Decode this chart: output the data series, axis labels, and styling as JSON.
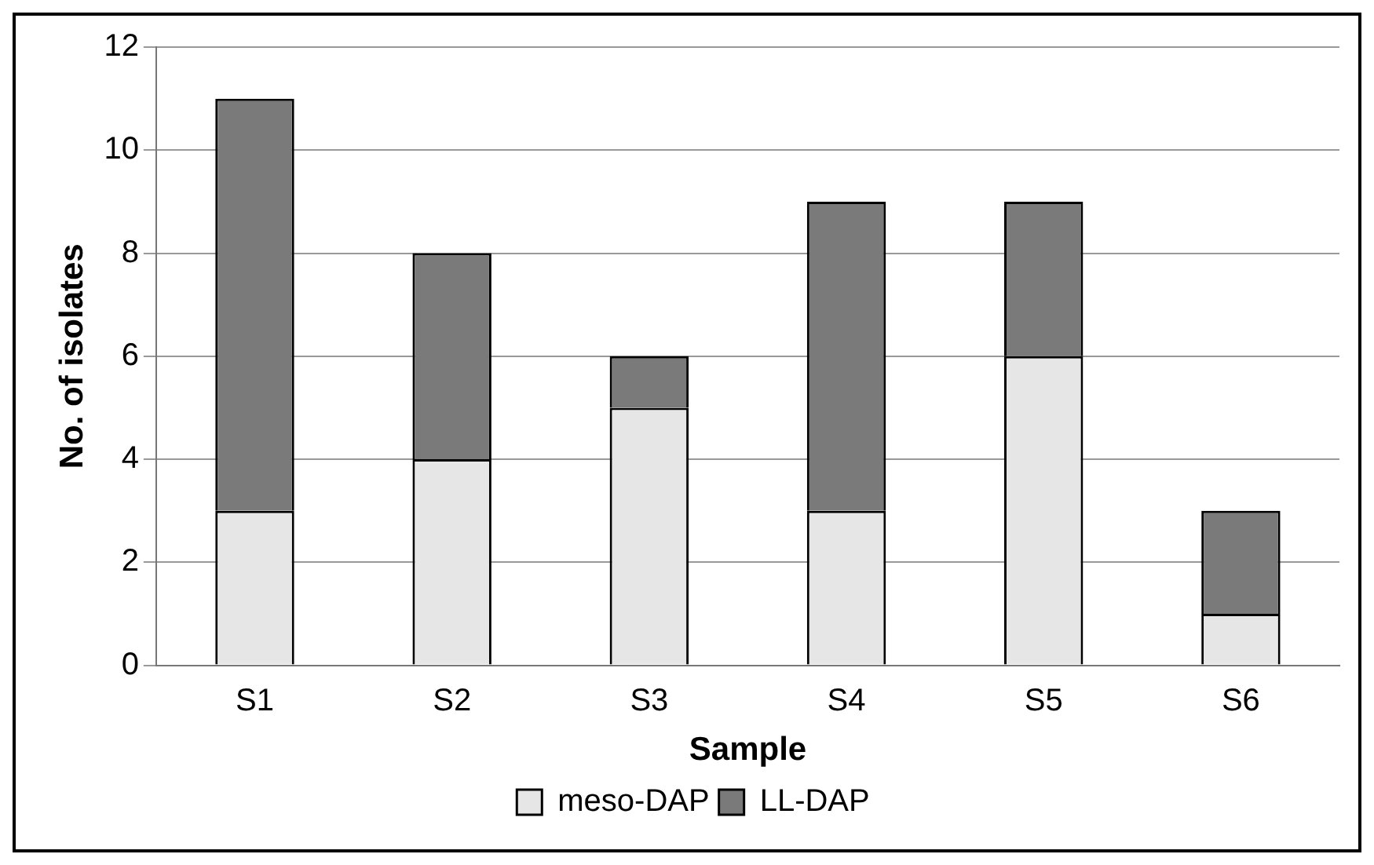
{
  "chart_data": {
    "type": "bar",
    "stacked": true,
    "xlabel": "Sample",
    "ylabel": "No. of isolates",
    "categories": [
      "S1",
      "S2",
      "S3",
      "S4",
      "S5",
      "S6"
    ],
    "series": [
      {
        "name": "meso-DAP",
        "color": "#e6e6e6",
        "values": [
          3,
          4,
          5,
          3,
          6,
          1
        ]
      },
      {
        "name": "LL-DAP",
        "color": "#7a7a7a",
        "values": [
          8,
          4,
          1,
          6,
          3,
          2
        ]
      }
    ],
    "ylim": [
      0,
      12
    ],
    "yticks": [
      0,
      2,
      4,
      6,
      8,
      10,
      12
    ],
    "grid": "y",
    "legend": "bottom"
  }
}
